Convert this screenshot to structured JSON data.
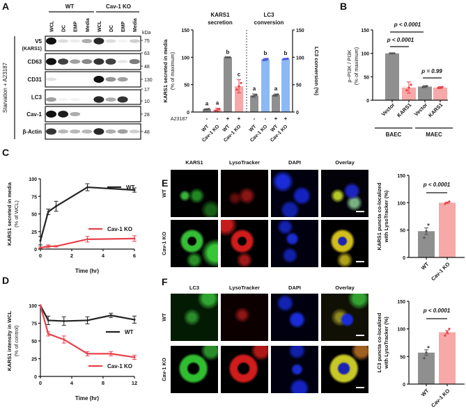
{
  "panel_labels": {
    "A": "A",
    "B": "B",
    "C": "C",
    "D": "D",
    "E": "E",
    "F": "F"
  },
  "colors": {
    "grey": "#8f8f8f",
    "red_bar": "#f7a8a8",
    "red": "#e8404a",
    "blue_bar": "#8cb8f4",
    "blue": "#4a55e0",
    "black": "#222222"
  },
  "blot": {
    "groups": [
      "WT",
      "Cav-1 KO"
    ],
    "lanes": [
      "WCL",
      "DC",
      "EMP",
      "Media",
      "WCL",
      "DC",
      "EMP",
      "Media"
    ],
    "kda_label": "kDa",
    "condition": "Starvation + A23187",
    "rows": [
      {
        "label": "V5",
        "sublabel": "(KARS1)",
        "markers": [
          "75"
        ],
        "bands": [
          1,
          0.15,
          0.08,
          0.35,
          0.9,
          0.15,
          0.05,
          0.2
        ]
      },
      {
        "label": "CD63",
        "sublabel": "",
        "markers": [
          "63",
          "48"
        ],
        "bands": [
          1,
          0.8,
          0.4,
          0.5,
          0.85,
          0.8,
          0.1,
          0.55
        ]
      },
      {
        "label": "CD31",
        "sublabel": "",
        "markers": [
          "130"
        ],
        "bands": [
          0.12,
          0,
          0,
          0,
          1,
          0.45,
          0.4,
          0
        ]
      },
      {
        "label": "LC3",
        "sublabel": "",
        "markers": [
          "17",
          "10"
        ],
        "bands": [
          0.4,
          0.05,
          0.05,
          0,
          0.9,
          0.35,
          0.85,
          0
        ]
      },
      {
        "label": "Cav-1",
        "sublabel": "",
        "markers": [
          "28"
        ],
        "bands": [
          1,
          0.95,
          0.35,
          0,
          0,
          0,
          0,
          0
        ]
      },
      {
        "label": "β-Actin",
        "sublabel": "",
        "markers": [
          "48"
        ],
        "bands": [
          0.85,
          0.3,
          0.3,
          0.3,
          0.9,
          0.35,
          0.4,
          0.2
        ]
      }
    ]
  },
  "micrographs": {
    "E": {
      "columns": [
        "KARS1",
        "LysoTracker",
        "DAPI",
        "Overlay"
      ],
      "rows": [
        "WT",
        "Cav-1 KO"
      ]
    },
    "F": {
      "columns": [
        "LC3",
        "LysoTracker",
        "DAPI",
        "Overlay"
      ],
      "rows": [
        "WT",
        "Cav-1 KO"
      ]
    }
  },
  "chart_data": [
    {
      "id": "A",
      "type": "bar",
      "headers": [
        [
          "KARS1",
          "secretion"
        ],
        [
          "LC3",
          "conversion"
        ]
      ],
      "ylabel": [
        "KARS1 secreted in media",
        "(% of maximum)"
      ],
      "ylabel_right": "LC3 conversion (%)",
      "ylim": [
        0,
        150
      ],
      "yticks": [
        "0",
        "50",
        "100",
        "150"
      ],
      "treatment_label": "A23187",
      "categories": [
        "WT",
        "Cav-1 KO",
        "WT",
        "Cav-1 KO",
        "WT",
        "Cav-1 KO",
        "WT",
        "Cav-1 KO"
      ],
      "treatment": [
        "-",
        "-",
        "+",
        "+",
        "-",
        "-",
        "+",
        "+"
      ],
      "values": [
        5,
        4,
        100,
        47,
        30,
        96,
        31,
        97
      ],
      "errors": [
        1,
        3,
        0,
        12,
        3,
        2,
        2,
        1
      ],
      "letters": [
        "a",
        "a",
        "b",
        "c",
        "a",
        "b",
        "a",
        "b"
      ],
      "series_color": [
        "grey",
        "red",
        "grey",
        "red",
        "grey",
        "blue",
        "grey",
        "blue"
      ]
    },
    {
      "id": "B",
      "type": "bar",
      "ylabel": [
        "p−PI3K / PI3K",
        "(% of maximum)"
      ],
      "ylim": [
        0,
        150
      ],
      "yticks": [
        "0",
        "50",
        "100",
        "150"
      ],
      "categories": [
        "Vector",
        "KARS1",
        "Vector",
        "KARS1"
      ],
      "groups": [
        "BAEC",
        "MAEC"
      ],
      "values": [
        100,
        27,
        29,
        27
      ],
      "errors": [
        0,
        12,
        2,
        2
      ],
      "series_color": [
        "grey",
        "red",
        "grey",
        "red"
      ],
      "comparisons": [
        {
          "text": "p < 0.0001"
        },
        {
          "text": "p < 0.0001"
        },
        {
          "text": "p = 0.99"
        }
      ]
    },
    {
      "id": "C",
      "type": "line",
      "ylabel": [
        "KARS1 secreted in media",
        "(% of WCL)"
      ],
      "xlabel": "Time (hr)",
      "xlim": [
        0,
        6
      ],
      "ylim": [
        0,
        100
      ],
      "xticks": [
        "0",
        "2",
        "4",
        "6"
      ],
      "yticks": [
        "0",
        "25",
        "50",
        "75",
        "100"
      ],
      "series": [
        {
          "name": "WT",
          "color": "black",
          "x": [
            0,
            0.5,
            1,
            3,
            6
          ],
          "y": [
            12,
            53,
            61,
            88,
            84
          ],
          "err": [
            6,
            4,
            7,
            5,
            3
          ]
        },
        {
          "name": "Cav-1 KO",
          "color": "red",
          "x": [
            0,
            0.5,
            1,
            3,
            6
          ],
          "y": [
            2,
            4,
            4,
            14,
            15
          ],
          "err": [
            1,
            2,
            1,
            4,
            4
          ]
        }
      ]
    },
    {
      "id": "D",
      "type": "line",
      "ylabel": [
        "KARS1 intensity in WCL",
        "(% of control)"
      ],
      "xlabel": "Time (hr)",
      "xlim": [
        0,
        12
      ],
      "ylim": [
        0,
        100
      ],
      "xticks": [
        "0",
        "4",
        "8",
        "12"
      ],
      "yticks": [
        "0",
        "25",
        "50",
        "75",
        "100"
      ],
      "series": [
        {
          "name": "WT",
          "color": "black",
          "x": [
            0,
            1,
            3,
            6,
            9,
            12
          ],
          "y": [
            100,
            79,
            78,
            79,
            86,
            80
          ],
          "err": [
            0,
            6,
            6,
            5,
            3,
            5
          ]
        },
        {
          "name": "Cav-1 KO",
          "color": "red",
          "x": [
            0,
            1,
            3,
            6,
            9,
            12
          ],
          "y": [
            100,
            60,
            52,
            32,
            32,
            27
          ],
          "err": [
            0,
            3,
            5,
            3,
            3,
            3
          ]
        }
      ]
    },
    {
      "id": "E",
      "type": "bar",
      "ylabel": [
        "KARS1 puncta co-localized",
        "with LysoTracker (%)"
      ],
      "ylim": [
        0,
        150
      ],
      "yticks": [
        "0",
        "50",
        "100",
        "150"
      ],
      "categories": [
        "WT",
        "Cav-1 KO"
      ],
      "values": [
        48,
        100
      ],
      "errors": [
        6,
        1
      ],
      "series_color": [
        "grey",
        "red"
      ],
      "comparisons": [
        {
          "text": "p < 0.0001"
        }
      ]
    },
    {
      "id": "F",
      "type": "bar",
      "ylabel": [
        "LC3 puncta co-localized",
        "with LysoTracker (%)"
      ],
      "ylim": [
        0,
        150
      ],
      "yticks": [
        "0",
        "50",
        "100",
        "150"
      ],
      "categories": [
        "WT",
        "Cav-1 KO"
      ],
      "values": [
        57,
        94
      ],
      "errors": [
        5,
        3
      ],
      "series_color": [
        "grey",
        "red"
      ],
      "comparisons": [
        {
          "text": "p < 0.0001"
        }
      ]
    }
  ]
}
